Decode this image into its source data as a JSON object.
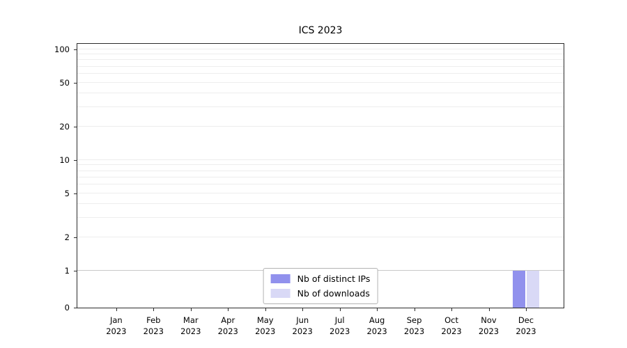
{
  "chart_data": {
    "type": "bar",
    "title": "ICS 2023",
    "x_year": "2023",
    "categories": [
      "Jan",
      "Feb",
      "Mar",
      "Apr",
      "May",
      "Jun",
      "Jul",
      "Aug",
      "Sep",
      "Oct",
      "Nov",
      "Dec"
    ],
    "series": [
      {
        "name": "Nb of distinct IPs",
        "color": "#9191ed",
        "values": [
          0,
          0,
          0,
          0,
          0,
          0,
          0,
          0,
          0,
          0,
          0,
          1
        ]
      },
      {
        "name": "Nb of downloads",
        "color": "#d9d9f6",
        "values": [
          0,
          0,
          0,
          0,
          0,
          0,
          0,
          0,
          0,
          0,
          0,
          1
        ]
      }
    ],
    "yscale": "symlog",
    "ylim": [
      0,
      112
    ],
    "yticks": [
      0,
      1,
      2,
      5,
      10,
      20,
      50,
      100
    ],
    "minor_gridlines": [
      2,
      3,
      4,
      5,
      6,
      7,
      8,
      9,
      10,
      20,
      30,
      40,
      50,
      60,
      70,
      80,
      90,
      100
    ],
    "emphasized_gridlines": [
      1
    ],
    "grid": true,
    "legend_position": "bottom-center"
  }
}
